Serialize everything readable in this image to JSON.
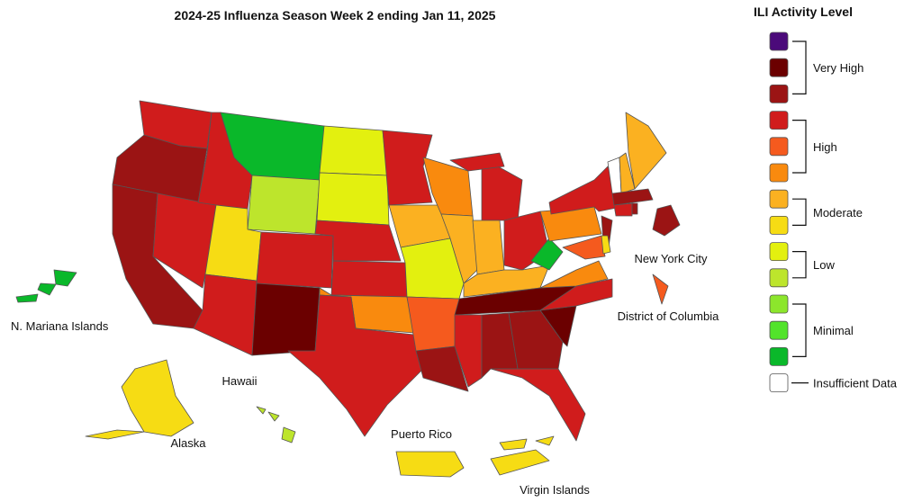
{
  "title": "2024-25 Influenza Season Week 2 ending Jan 11, 2025",
  "legend": {
    "title": "ILI Activity Level",
    "levels": [
      {
        "label": "Very High",
        "colors": [
          "#4b0a7a",
          "#6b0000",
          "#9b1414"
        ]
      },
      {
        "label": "High",
        "colors": [
          "#d01c1c",
          "#f55a1e",
          "#f98a0e"
        ]
      },
      {
        "label": "Moderate",
        "colors": [
          "#fbb121",
          "#f6dc14"
        ]
      },
      {
        "label": "Low",
        "colors": [
          "#e3f00f",
          "#bde52c"
        ]
      },
      {
        "label": "Minimal",
        "colors": [
          "#8ce62c",
          "#52e32b",
          "#0ab82a"
        ]
      },
      {
        "label": "Insufficient Data",
        "colors": [
          "#ffffff"
        ]
      }
    ]
  },
  "labels": [
    "N. Mariana Islands",
    "Hawaii",
    "Alaska",
    "Puerto Rico",
    "Virgin Islands",
    "New York City",
    "District of Columbia"
  ]
}
